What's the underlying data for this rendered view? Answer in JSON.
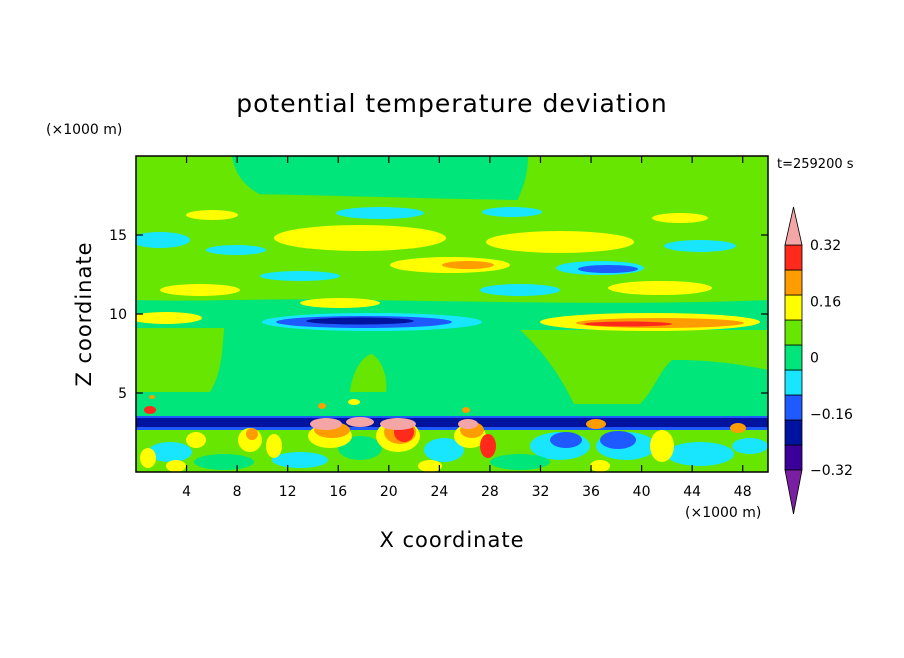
{
  "chart_data": {
    "type": "heatmap",
    "title": "potential temperature deviation",
    "xlabel": "X coordinate",
    "ylabel": "Z coordinate",
    "x_unit": "(×1000 m)",
    "y_unit": "(×1000 m)",
    "time_label": "t=259200 s",
    "xlim": [
      0,
      50
    ],
    "ylim": [
      0,
      20
    ],
    "x_ticks": [
      4,
      8,
      12,
      16,
      20,
      24,
      28,
      32,
      36,
      40,
      44,
      48
    ],
    "y_ticks": [
      5,
      10,
      15
    ],
    "colorbar": {
      "levels": [
        -0.4,
        -0.32,
        -0.24,
        -0.16,
        -0.08,
        0,
        0.08,
        0.16,
        0.24,
        0.32,
        0.4
      ],
      "tick_labels": [
        "0.32",
        "0.16",
        "0",
        "−0.16",
        "−0.32"
      ],
      "tick_values": [
        0.32,
        0.16,
        0,
        -0.16,
        -0.32
      ],
      "colors": [
        "#7b1fa2",
        "#3a0099",
        "#00139e",
        "#1e5aff",
        "#18e6ff",
        "#00e67a",
        "#66e600",
        "#ffff00",
        "#ff9d00",
        "#ff2a1c",
        "#f4a6a6"
      ],
      "extend": "both"
    },
    "features": [
      {
        "name": "tropopause negative band",
        "x": [
          11,
          27
        ],
        "z": [
          9.3,
          10.2
        ],
        "value": -0.3
      },
      {
        "name": "tropopause positive band",
        "x": [
          34,
          49
        ],
        "z": [
          9.2,
          10.2
        ],
        "value": 0.25
      },
      {
        "name": "boundary layer inversion",
        "x": [
          0,
          50
        ],
        "z": [
          3.0,
          3.5
        ],
        "value": -0.3
      },
      {
        "name": "convective plumes",
        "x": [
          12,
          28
        ],
        "z": [
          2.0,
          4.0
        ],
        "value": 0.35
      },
      {
        "name": "upper warm band",
        "x": [
          10,
          28
        ],
        "z": [
          14.0,
          15.5
        ],
        "value": 0.15
      },
      {
        "name": "upper cold band",
        "x": [
          36,
          44
        ],
        "z": [
          12.5,
          13.2
        ],
        "value": -0.2
      }
    ]
  }
}
